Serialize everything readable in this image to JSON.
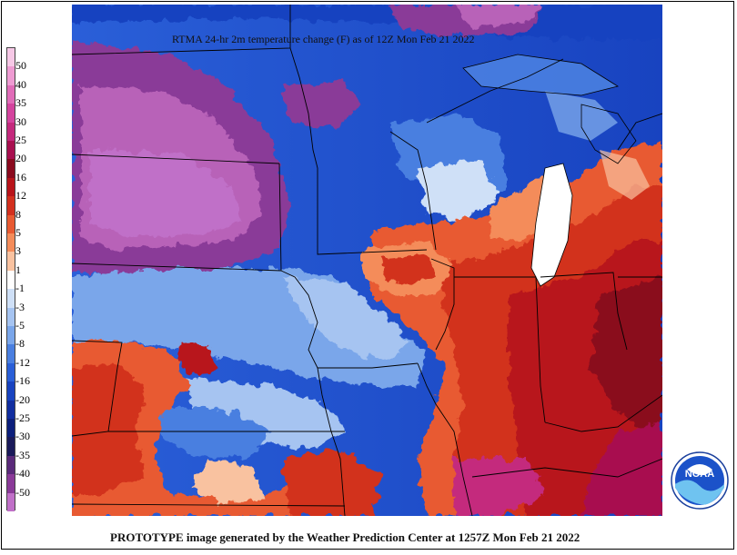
{
  "title": "RTMA 24-hr 2m temperature change (F) as of 12Z Mon Feb 21 2022",
  "footer": "PROTOTYPE image generated by the Weather Prediction Center at 1257Z Mon Feb 21 2022",
  "logo_text": "NOAA",
  "legend": {
    "labels": [
      "50",
      "40",
      "35",
      "30",
      "25",
      "20",
      "16",
      "12",
      "8",
      "5",
      "3",
      "1",
      "-1",
      "-3",
      "-5",
      "-8",
      "-12",
      "-16",
      "-20",
      "-25",
      "-30",
      "-35",
      "-40",
      "-50"
    ],
    "colors": [
      "#f6c8e6",
      "#ee9bd2",
      "#e06cb8",
      "#d4449e",
      "#c42a7d",
      "#a8104f",
      "#8a0a1e",
      "#b8141a",
      "#d2301e",
      "#e85a32",
      "#f48c5a",
      "#f9c2a0",
      "#ffffff",
      "#cfe0f7",
      "#a6c4f1",
      "#7aa6ea",
      "#4a7fe0",
      "#2a5fd8",
      "#1843c0",
      "#112ea0",
      "#0c1f7c",
      "#1a1a5a",
      "#5a2a7a",
      "#8a3a98",
      "#c070c8"
    ]
  },
  "colors": {
    "warm": "#c4201a",
    "cold": "#2a5fd8",
    "magenta": "#9a3a9a"
  }
}
